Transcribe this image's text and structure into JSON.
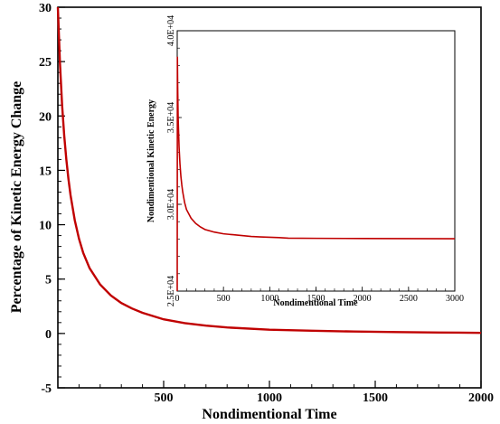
{
  "chart_data": [
    {
      "type": "line",
      "title": "",
      "xlabel": "Nondimentional Time",
      "ylabel": "Percentage of Kinetic Energy Change",
      "xlim": [
        0,
        2000
      ],
      "ylim": [
        -5,
        30
      ],
      "xticks": [
        500,
        1000,
        1500,
        2000
      ],
      "xtick_labels": [
        "500",
        "1000",
        "1500",
        "2000"
      ],
      "yticks": [
        -5,
        0,
        5,
        10,
        15,
        20,
        25,
        30
      ],
      "ytick_labels": [
        "-5",
        "0",
        "5",
        "10",
        "15",
        "20",
        "25",
        "30"
      ],
      "grid": false,
      "series": [
        {
          "color": "#c00000",
          "x": [
            0,
            10,
            20,
            30,
            40,
            50,
            60,
            80,
            100,
            120,
            150,
            200,
            250,
            300,
            350,
            400,
            500,
            600,
            700,
            800,
            1000,
            1200,
            1400,
            1600,
            1800,
            2000
          ],
          "y": [
            30,
            24.8,
            21.0,
            18.2,
            16.0,
            14.2,
            12.7,
            10.4,
            8.7,
            7.4,
            6.0,
            4.5,
            3.5,
            2.8,
            2.3,
            1.9,
            1.3,
            0.95,
            0.72,
            0.55,
            0.35,
            0.25,
            0.18,
            0.13,
            0.09,
            0.06
          ]
        }
      ]
    },
    {
      "type": "line",
      "title": "",
      "xlabel": "Nondimentional Time",
      "ylabel": "Nondimentional Kinetic Energy",
      "xlim": [
        0,
        3000
      ],
      "ylim": [
        25000,
        40000
      ],
      "xticks": [
        0,
        500,
        1000,
        1500,
        2000,
        2500,
        3000
      ],
      "xtick_labels": [
        "0",
        "500",
        "1000",
        "1500",
        "2000",
        "2500",
        "3000"
      ],
      "yticks": [
        25000,
        30000,
        35000,
        40000
      ],
      "ytick_labels": [
        "2.5E+04",
        "3.0E+04",
        "3.5E+04",
        "4.0E+04"
      ],
      "grid": false,
      "series": [
        {
          "color": "#c00000",
          "x": [
            0,
            2,
            5,
            10,
            20,
            30,
            40,
            50,
            60,
            80,
            100,
            150,
            200,
            250,
            300,
            400,
            500,
            600,
            700,
            800,
            900,
            1000,
            1100,
            1200,
            1500,
            2000,
            2500,
            3000
          ],
          "y": [
            25000,
            38500,
            36800,
            35000,
            33300,
            32300,
            31600,
            31100,
            30700,
            30100,
            29700,
            29200,
            28900,
            28700,
            28550,
            28400,
            28300,
            28250,
            28200,
            28150,
            28120,
            28100,
            28080,
            28050,
            28040,
            28030,
            28025,
            28020
          ]
        }
      ]
    }
  ]
}
